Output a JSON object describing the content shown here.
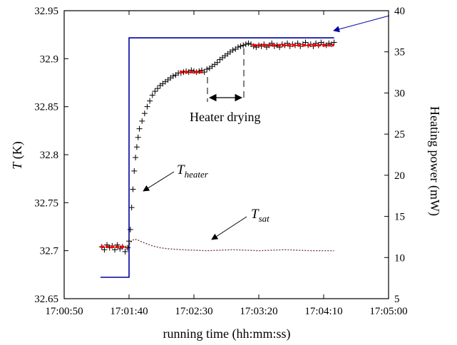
{
  "chart_data": {
    "type": "scatter",
    "title": "",
    "xlabel": "running time (hh:mm:ss)",
    "ylabel_symbol": "T",
    "ylabel_unit": " (K)",
    "y2label": "Heating power (mW)",
    "x_ticks": [
      "17:00:50",
      "17:01:40",
      "17:02:30",
      "17:03:20",
      "17:04:10",
      "17:05:00"
    ],
    "xlim": [
      "17:00:50",
      "17:05:00"
    ],
    "ylim": [
      32.65,
      32.95
    ],
    "y_ticks": [
      "32.65",
      "32.7",
      "32.75",
      "32.8",
      "32.85",
      "32.9",
      "32.95"
    ],
    "y2lim": [
      5,
      40
    ],
    "y2_ticks": [
      "5",
      "10",
      "15",
      "20",
      "25",
      "30",
      "35",
      "40"
    ],
    "colors": {
      "heater_marker": "#000000",
      "average_line": "#ff0000",
      "power_line": "#0000a0",
      "sat_line": "#7a4040",
      "power_axis_label": "#0000a0"
    },
    "series": [
      {
        "key": "heater",
        "marker": "plus",
        "points": [
          [
            "17:01:19",
            32.704
          ],
          [
            "17:01:21",
            32.701
          ],
          [
            "17:01:23",
            32.706
          ],
          [
            "17:01:25",
            32.703
          ],
          [
            "17:01:27",
            32.705
          ],
          [
            "17:01:29",
            32.701
          ],
          [
            "17:01:31",
            32.706
          ],
          [
            "17:01:33",
            32.702
          ],
          [
            "17:01:35",
            32.704
          ],
          [
            "17:01:37",
            32.699
          ],
          [
            "17:01:39",
            32.703
          ],
          [
            "17:01:40",
            32.71
          ],
          [
            "17:01:41",
            32.722
          ],
          [
            "17:01:42",
            32.745
          ],
          [
            "17:01:43",
            32.764
          ],
          [
            "17:01:44",
            32.783
          ],
          [
            "17:01:45",
            32.797
          ],
          [
            "17:01:46",
            32.808
          ],
          [
            "17:01:47",
            32.818
          ],
          [
            "17:01:48",
            32.827
          ],
          [
            "17:01:50",
            32.835
          ],
          [
            "17:01:52",
            32.843
          ],
          [
            "17:01:54",
            32.85
          ],
          [
            "17:01:56",
            32.856
          ],
          [
            "17:01:58",
            32.862
          ],
          [
            "17:02:00",
            32.866
          ],
          [
            "17:02:02",
            32.869
          ],
          [
            "17:02:04",
            32.872
          ],
          [
            "17:02:06",
            32.874
          ],
          [
            "17:02:08",
            32.876
          ],
          [
            "17:02:10",
            32.878
          ],
          [
            "17:02:12",
            32.88
          ],
          [
            "17:02:14",
            32.882
          ],
          [
            "17:02:16",
            32.883
          ],
          [
            "17:02:18",
            32.885
          ],
          [
            "17:02:20",
            32.885
          ],
          [
            "17:02:22",
            32.886
          ],
          [
            "17:02:24",
            32.887
          ],
          [
            "17:02:26",
            32.886
          ],
          [
            "17:02:28",
            32.888
          ],
          [
            "17:02:30",
            32.887
          ],
          [
            "17:02:32",
            32.886
          ],
          [
            "17:02:34",
            32.887
          ],
          [
            "17:02:36",
            32.888
          ],
          [
            "17:02:38",
            32.886
          ],
          [
            "17:02:40",
            32.889
          ],
          [
            "17:02:42",
            32.89
          ],
          [
            "17:02:44",
            32.892
          ],
          [
            "17:02:46",
            32.894
          ],
          [
            "17:02:48",
            32.896
          ],
          [
            "17:02:50",
            32.899
          ],
          [
            "17:02:52",
            32.901
          ],
          [
            "17:02:54",
            32.903
          ],
          [
            "17:02:56",
            32.905
          ],
          [
            "17:02:58",
            32.907
          ],
          [
            "17:03:00",
            32.909
          ],
          [
            "17:03:02",
            32.91
          ],
          [
            "17:03:04",
            32.912
          ],
          [
            "17:03:06",
            32.913
          ],
          [
            "17:03:08",
            32.914
          ],
          [
            "17:03:10",
            32.915
          ],
          [
            "17:03:12",
            32.916
          ],
          [
            "17:03:14",
            32.915
          ],
          [
            "17:03:16",
            32.913
          ],
          [
            "17:03:18",
            32.912
          ],
          [
            "17:03:20",
            32.914
          ],
          [
            "17:03:22",
            32.913
          ],
          [
            "17:03:24",
            32.915
          ],
          [
            "17:03:26",
            32.912
          ],
          [
            "17:03:28",
            32.914
          ],
          [
            "17:03:30",
            32.916
          ],
          [
            "17:03:32",
            32.913
          ],
          [
            "17:03:34",
            32.914
          ],
          [
            "17:03:36",
            32.912
          ],
          [
            "17:03:38",
            32.915
          ],
          [
            "17:03:40",
            32.914
          ],
          [
            "17:03:42",
            32.916
          ],
          [
            "17:03:44",
            32.913
          ],
          [
            "17:03:46",
            32.915
          ],
          [
            "17:03:48",
            32.914
          ],
          [
            "17:03:50",
            32.916
          ],
          [
            "17:03:52",
            32.913
          ],
          [
            "17:03:54",
            32.915
          ],
          [
            "17:03:56",
            32.917
          ],
          [
            "17:03:58",
            32.914
          ],
          [
            "17:04:00",
            32.915
          ],
          [
            "17:04:02",
            32.913
          ],
          [
            "17:04:04",
            32.916
          ],
          [
            "17:04:06",
            32.914
          ],
          [
            "17:04:08",
            32.917
          ],
          [
            "17:04:10",
            32.915
          ],
          [
            "17:04:12",
            32.914
          ],
          [
            "17:04:14",
            32.916
          ],
          [
            "17:04:16",
            32.915
          ],
          [
            "17:04:18",
            32.917
          ]
        ]
      },
      {
        "key": "average",
        "segments": [
          [
            [
              "17:01:18",
              32.704
            ],
            [
              "17:01:38",
              32.704
            ]
          ],
          [
            [
              "17:02:19",
              32.886
            ],
            [
              "17:02:37",
              32.886
            ]
          ],
          [
            [
              "17:03:15",
              32.914
            ],
            [
              "17:04:18",
              32.914
            ]
          ]
        ]
      },
      {
        "key": "power",
        "axis": "right",
        "points": [
          [
            "17:01:18",
            7.6
          ],
          [
            "17:01:40",
            7.6
          ],
          [
            "17:01:40",
            36.7
          ],
          [
            "17:04:18",
            36.7
          ]
        ]
      },
      {
        "key": "sat",
        "points": [
          [
            "17:01:38",
            32.701
          ],
          [
            "17:01:40",
            32.706
          ],
          [
            "17:01:42",
            32.71
          ],
          [
            "17:01:44",
            32.712
          ],
          [
            "17:01:47",
            32.711
          ],
          [
            "17:01:50",
            32.709
          ],
          [
            "17:01:54",
            32.707
          ],
          [
            "17:01:58",
            32.705
          ],
          [
            "17:02:04",
            32.703
          ],
          [
            "17:02:10",
            32.702
          ],
          [
            "17:02:20",
            32.701
          ],
          [
            "17:02:40",
            32.7
          ],
          [
            "17:03:00",
            32.701
          ],
          [
            "17:03:20",
            32.7
          ],
          [
            "17:03:40",
            32.701
          ],
          [
            "17:04:00",
            32.7
          ],
          [
            "17:04:18",
            32.7
          ]
        ]
      }
    ],
    "annotations": {
      "heater_drying": "Heater drying",
      "t_heater_symbol": "T",
      "t_heater_sub": "heater",
      "t_sat_symbol": "T",
      "t_sat_sub": "sat"
    }
  }
}
